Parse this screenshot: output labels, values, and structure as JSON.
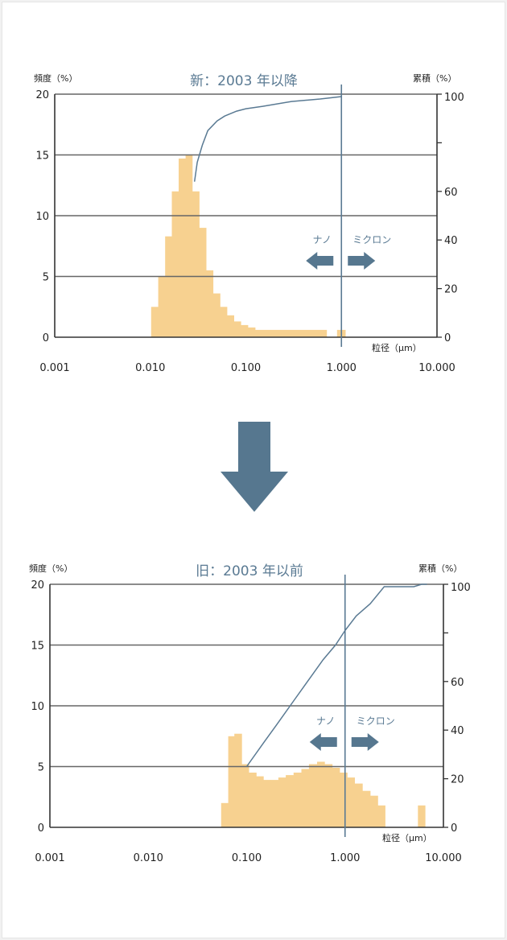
{
  "colors": {
    "bar": "#f7d190",
    "line": "#5a7a93",
    "grid": "#666666",
    "arrow": "#56778f"
  },
  "down_arrow": {
    "icon": "down-arrow"
  },
  "chart_data": [
    {
      "type": "bar",
      "title": "新：2003 年以降",
      "left_label": "頻度（%）",
      "right_label": "累積（%）",
      "x_label": "粒径（μm）",
      "x_scale": "log",
      "xlim": [
        0.001,
        10
      ],
      "ylim_left": [
        0,
        20
      ],
      "ylim_right": [
        0,
        100
      ],
      "x_ticks": [
        "0.001",
        "0.010",
        "0.100",
        "1.000",
        "10.000"
      ],
      "y_ticks_left": [
        "0",
        "5",
        "10",
        "15",
        "20"
      ],
      "y_ticks_right": [
        "0",
        "20",
        "40",
        "60",
        "100"
      ],
      "bars": [
        {
          "x0": 0.0102,
          "x1": 0.0121,
          "value": 2.5
        },
        {
          "x0": 0.0121,
          "x1": 0.0143,
          "value": 5.0
        },
        {
          "x0": 0.0143,
          "x1": 0.0168,
          "value": 8.3
        },
        {
          "x0": 0.0168,
          "x1": 0.0198,
          "value": 12.0
        },
        {
          "x0": 0.0198,
          "x1": 0.0234,
          "value": 14.7
        },
        {
          "x0": 0.0234,
          "x1": 0.0275,
          "value": 15.0
        },
        {
          "x0": 0.0275,
          "x1": 0.0325,
          "value": 12.0
        },
        {
          "x0": 0.0325,
          "x1": 0.0384,
          "value": 9.0
        },
        {
          "x0": 0.0384,
          "x1": 0.0454,
          "value": 5.5
        },
        {
          "x0": 0.0454,
          "x1": 0.0536,
          "value": 3.6
        },
        {
          "x0": 0.0536,
          "x1": 0.0634,
          "value": 2.5
        },
        {
          "x0": 0.0634,
          "x1": 0.0749,
          "value": 1.8
        },
        {
          "x0": 0.0749,
          "x1": 0.0885,
          "value": 1.3
        },
        {
          "x0": 0.0885,
          "x1": 0.105,
          "value": 1.0
        },
        {
          "x0": 0.105,
          "x1": 0.125,
          "value": 0.8
        },
        {
          "x0": 0.125,
          "x1": 0.7,
          "value": 0.6
        },
        {
          "x0": 0.9,
          "x1": 1.1,
          "value": 0.6
        }
      ],
      "cumulative": {
        "x": [
          0.029,
          0.031,
          0.035,
          0.04,
          0.05,
          0.06,
          0.08,
          0.1,
          0.15,
          0.3,
          0.6,
          1.0
        ],
        "y": [
          64,
          72,
          79,
          85,
          89,
          91,
          93,
          94,
          95,
          97,
          98,
          99
        ]
      },
      "boundary_x": 1.0,
      "annotations": {
        "nano": "ナノ",
        "micron": "ミクロン"
      }
    },
    {
      "type": "bar",
      "title": "旧：2003 年以前",
      "left_label": "頻度（%）",
      "right_label": "累積（%）",
      "x_label": "粒径（μm）",
      "x_scale": "log",
      "xlim": [
        0.001,
        10
      ],
      "ylim_left": [
        0,
        20
      ],
      "ylim_right": [
        0,
        100
      ],
      "x_ticks": [
        "0.001",
        "0.010",
        "0.100",
        "1.000",
        "10.000"
      ],
      "y_ticks_left": [
        "0",
        "5",
        "10",
        "15",
        "20"
      ],
      "y_ticks_right": [
        "0",
        "20",
        "40",
        "60",
        "100"
      ],
      "bars": [
        {
          "x0": 0.055,
          "x1": 0.065,
          "value": 2.0
        },
        {
          "x0": 0.065,
          "x1": 0.075,
          "value": 7.5
        },
        {
          "x0": 0.075,
          "x1": 0.089,
          "value": 7.7
        },
        {
          "x0": 0.089,
          "x1": 0.105,
          "value": 5.2
        },
        {
          "x0": 0.105,
          "x1": 0.125,
          "value": 4.5
        },
        {
          "x0": 0.125,
          "x1": 0.148,
          "value": 4.2
        },
        {
          "x0": 0.148,
          "x1": 0.175,
          "value": 3.9
        },
        {
          "x0": 0.175,
          "x1": 0.21,
          "value": 3.9
        },
        {
          "x0": 0.21,
          "x1": 0.25,
          "value": 4.1
        },
        {
          "x0": 0.25,
          "x1": 0.3,
          "value": 4.3
        },
        {
          "x0": 0.3,
          "x1": 0.36,
          "value": 4.5
        },
        {
          "x0": 0.36,
          "x1": 0.43,
          "value": 4.8
        },
        {
          "x0": 0.43,
          "x1": 0.52,
          "value": 5.2
        },
        {
          "x0": 0.52,
          "x1": 0.62,
          "value": 5.4
        },
        {
          "x0": 0.62,
          "x1": 0.74,
          "value": 5.2
        },
        {
          "x0": 0.74,
          "x1": 0.88,
          "value": 4.9
        },
        {
          "x0": 0.88,
          "x1": 1.05,
          "value": 4.5
        },
        {
          "x0": 1.05,
          "x1": 1.25,
          "value": 4.1
        },
        {
          "x0": 1.25,
          "x1": 1.5,
          "value": 3.6
        },
        {
          "x0": 1.5,
          "x1": 1.8,
          "value": 3.0
        },
        {
          "x0": 1.8,
          "x1": 2.15,
          "value": 2.6
        },
        {
          "x0": 2.15,
          "x1": 2.55,
          "value": 1.8
        },
        {
          "x0": 5.5,
          "x1": 6.5,
          "value": 1.8
        }
      ],
      "cumulative": {
        "x": [
          0.1,
          0.15,
          0.2,
          0.3,
          0.45,
          0.6,
          0.8,
          1.0,
          1.3,
          1.8,
          2.5,
          5.0,
          6.0,
          6.8
        ],
        "y": [
          25,
          35,
          42,
          52,
          62,
          69,
          75,
          81,
          87,
          92,
          99,
          99,
          100,
          100
        ]
      },
      "boundary_x": 1.0,
      "annotations": {
        "nano": "ナノ",
        "micron": "ミクロン"
      }
    }
  ]
}
